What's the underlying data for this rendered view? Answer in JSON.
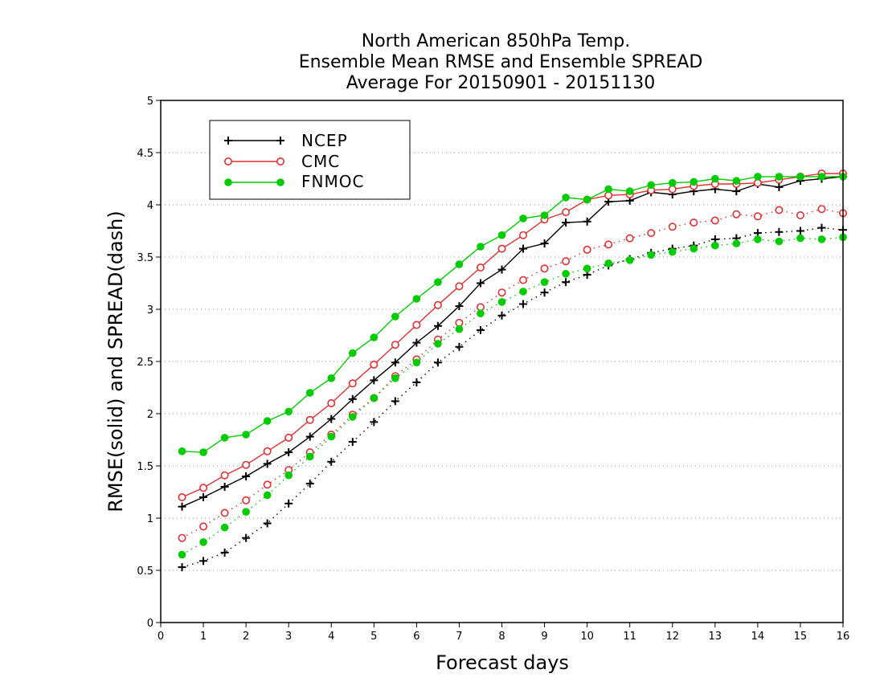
{
  "chart_data": {
    "type": "line",
    "title": [
      "North American 850hPa Temp.",
      "Ensemble Mean RMSE and Ensemble SPREAD",
      "Average For 20150901 - 20151130"
    ],
    "xlabel": "Forecast days",
    "ylabel": "RMSE(solid) and SPREAD(dash)",
    "xlim": [
      0,
      16
    ],
    "ylim": [
      0,
      5
    ],
    "x_ticks": [
      0,
      1,
      2,
      3,
      4,
      5,
      6,
      7,
      8,
      9,
      10,
      11,
      12,
      13,
      14,
      15,
      16
    ],
    "y_ticks": [
      0,
      0.5,
      1,
      1.5,
      2,
      2.5,
      3,
      3.5,
      4,
      4.5,
      5
    ],
    "y_tick_labels": [
      "0",
      "0.5",
      "1",
      "1.5",
      "2",
      "2.5",
      "3",
      "3.5",
      "4",
      "4.5",
      "5"
    ],
    "grid": "horizontal dotted",
    "legend_position": "top-left",
    "legend": [
      {
        "name": "NCEP",
        "color": "#000000",
        "marker": "plus"
      },
      {
        "name": "CMC",
        "color": "#e03030",
        "marker": "open-circle"
      },
      {
        "name": "FNMOC",
        "color": "#00cc00",
        "marker": "filled-circle"
      }
    ],
    "x": [
      0.5,
      1,
      1.5,
      2,
      2.5,
      3,
      3.5,
      4,
      4.5,
      5,
      5.5,
      6,
      6.5,
      7,
      7.5,
      8,
      8.5,
      9,
      9.5,
      10,
      10.5,
      11,
      11.5,
      12,
      12.5,
      13,
      13.5,
      14,
      14.5,
      15,
      15.5,
      16
    ],
    "series": [
      {
        "name": "NCEP",
        "kind": "RMSE",
        "style": "solid",
        "color": "#000000",
        "marker": "plus",
        "values": [
          1.11,
          1.2,
          1.3,
          1.4,
          1.52,
          1.63,
          1.78,
          1.95,
          2.14,
          2.32,
          2.49,
          2.68,
          2.84,
          3.03,
          3.25,
          3.38,
          3.58,
          3.63,
          3.83,
          3.84,
          4.03,
          4.04,
          4.12,
          4.1,
          4.13,
          4.15,
          4.13,
          4.2,
          4.17,
          4.23,
          4.25,
          4.27
        ]
      },
      {
        "name": "CMC",
        "kind": "RMSE",
        "style": "solid",
        "color": "#e03030",
        "marker": "open-circle",
        "values": [
          1.2,
          1.29,
          1.41,
          1.51,
          1.64,
          1.77,
          1.94,
          2.1,
          2.29,
          2.47,
          2.66,
          2.85,
          3.04,
          3.22,
          3.4,
          3.58,
          3.71,
          3.86,
          3.93,
          4.05,
          4.09,
          4.1,
          4.14,
          4.15,
          4.18,
          4.2,
          4.2,
          4.21,
          4.24,
          4.27,
          4.3,
          4.3
        ]
      },
      {
        "name": "FNMOC",
        "kind": "RMSE",
        "style": "solid",
        "color": "#00cc00",
        "marker": "filled-circle",
        "values": [
          1.64,
          1.63,
          1.77,
          1.8,
          1.93,
          2.02,
          2.2,
          2.34,
          2.58,
          2.73,
          2.93,
          3.1,
          3.26,
          3.43,
          3.6,
          3.71,
          3.87,
          3.9,
          4.07,
          4.05,
          4.15,
          4.13,
          4.19,
          4.21,
          4.22,
          4.25,
          4.23,
          4.27,
          4.27,
          4.27,
          4.27,
          4.27
        ]
      },
      {
        "name": "NCEP",
        "kind": "SPREAD",
        "style": "dash",
        "color": "#000000",
        "marker": "plus",
        "values": [
          0.53,
          0.59,
          0.67,
          0.81,
          0.95,
          1.14,
          1.33,
          1.54,
          1.73,
          1.92,
          2.12,
          2.3,
          2.49,
          2.64,
          2.8,
          2.94,
          3.05,
          3.16,
          3.26,
          3.33,
          3.42,
          3.48,
          3.54,
          3.58,
          3.61,
          3.67,
          3.68,
          3.73,
          3.74,
          3.75,
          3.78,
          3.76
        ]
      },
      {
        "name": "CMC",
        "kind": "SPREAD",
        "style": "dash",
        "color": "#e03030",
        "marker": "open-circle",
        "values": [
          0.81,
          0.92,
          1.05,
          1.17,
          1.32,
          1.46,
          1.63,
          1.8,
          1.99,
          2.15,
          2.36,
          2.52,
          2.71,
          2.87,
          3.02,
          3.16,
          3.28,
          3.39,
          3.46,
          3.57,
          3.62,
          3.68,
          3.73,
          3.79,
          3.83,
          3.85,
          3.91,
          3.89,
          3.95,
          3.9,
          3.96,
          3.92
        ]
      },
      {
        "name": "FNMOC",
        "kind": "SPREAD",
        "style": "dash",
        "color": "#00cc00",
        "marker": "filled-circle",
        "values": [
          0.65,
          0.77,
          0.91,
          1.06,
          1.22,
          1.41,
          1.59,
          1.78,
          1.97,
          2.15,
          2.34,
          2.49,
          2.67,
          2.81,
          2.96,
          3.07,
          3.17,
          3.26,
          3.34,
          3.39,
          3.44,
          3.47,
          3.52,
          3.55,
          3.58,
          3.61,
          3.63,
          3.67,
          3.65,
          3.68,
          3.67,
          3.69
        ]
      }
    ]
  }
}
